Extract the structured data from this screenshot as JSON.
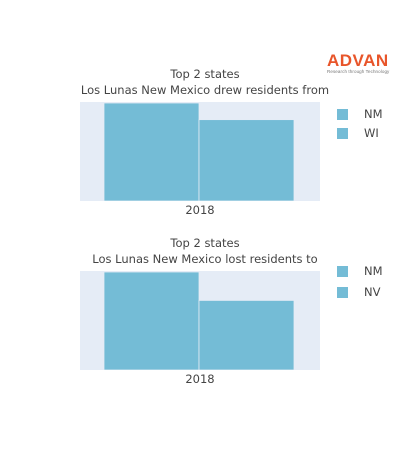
{
  "logo": {
    "word": "ADVAN",
    "tagline": "Research through Technology"
  },
  "colors": {
    "bar": "#74bcd6",
    "plot_bg": "#e5ecf6",
    "logo": "#e8552a"
  },
  "chart_data": [
    {
      "type": "bar",
      "title_line1": "Top 2 states",
      "title_line2": "Los Lunas New Mexico drew residents from",
      "categories": [
        "2018"
      ],
      "series": [
        {
          "name": "NM",
          "values": [
            100
          ]
        },
        {
          "name": "WI",
          "values": [
            83
          ]
        }
      ],
      "ylim": [
        0,
        100
      ],
      "grid": false,
      "legend": "right"
    },
    {
      "type": "bar",
      "title_line1": "Top 2 states",
      "title_line2": "Los Lunas New Mexico lost residents to",
      "categories": [
        "2018"
      ],
      "series": [
        {
          "name": "NM",
          "values": [
            100
          ]
        },
        {
          "name": "NV",
          "values": [
            71
          ]
        }
      ],
      "ylim": [
        0,
        100
      ],
      "grid": false,
      "legend": "right"
    }
  ]
}
